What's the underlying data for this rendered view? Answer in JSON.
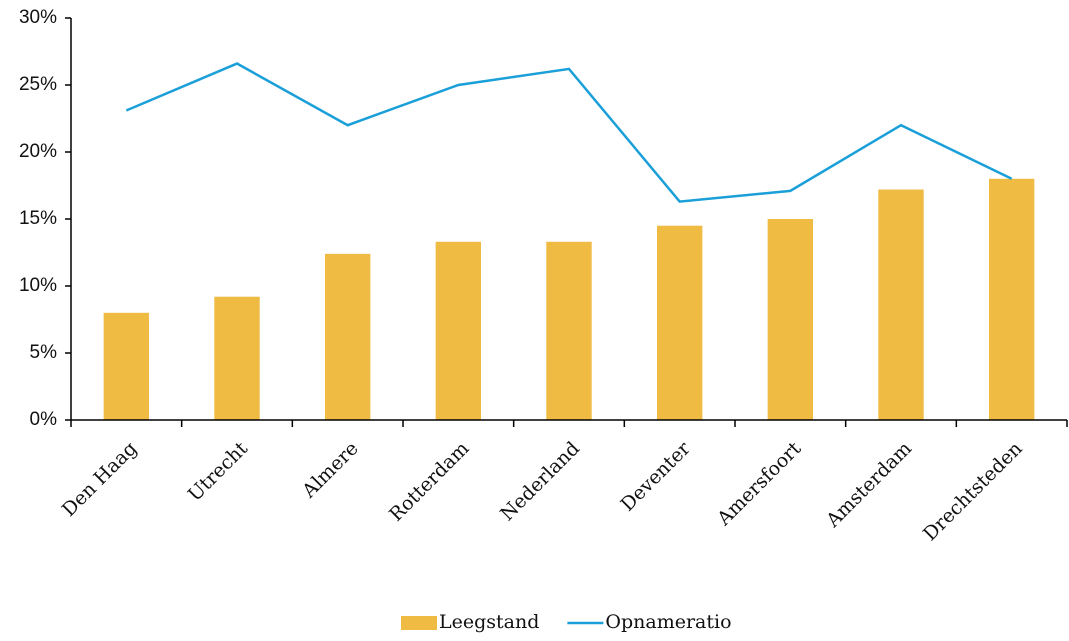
{
  "chart_data": {
    "type": "bar",
    "categories": [
      "Den Haag",
      "Utrecht",
      "Almere",
      "Rotterdam",
      "Nederland",
      "Deventer",
      "Amersfoort",
      "Amsterdam",
      "Drechtsteden"
    ],
    "series": [
      {
        "name": "Leegstand",
        "type": "bar",
        "color": "#efbb42",
        "values": [
          8.0,
          9.2,
          12.4,
          13.3,
          13.3,
          14.5,
          15.0,
          17.2,
          18.0
        ]
      },
      {
        "name": "Opnameratio",
        "type": "line",
        "color": "#1a9fd9",
        "values": [
          23.1,
          26.6,
          22.0,
          25.0,
          26.2,
          16.3,
          17.1,
          22.0,
          18.0
        ]
      }
    ],
    "ylim": [
      0,
      30
    ],
    "yticks": [
      {
        "value": 0,
        "label": "0%"
      },
      {
        "value": 5,
        "label": "5%"
      },
      {
        "value": 10,
        "label": "10%"
      },
      {
        "value": 15,
        "label": "15%"
      },
      {
        "value": 20,
        "label": "20%"
      },
      {
        "value": 25,
        "label": "25%"
      },
      {
        "value": 30,
        "label": "30%"
      }
    ],
    "legend": "bottom"
  }
}
